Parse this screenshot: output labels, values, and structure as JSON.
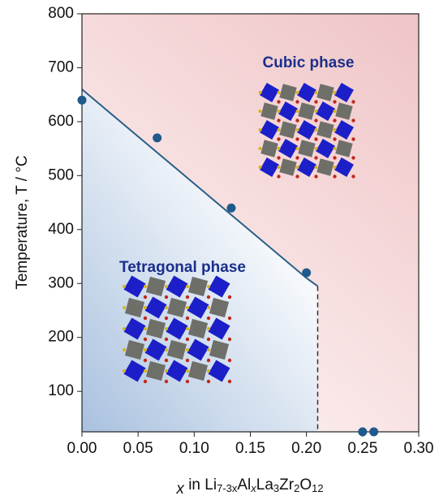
{
  "chart_data": {
    "type": "scatter",
    "x_label": [
      "x",
      " in Li",
      "7-3x",
      "Al",
      "x",
      "La",
      "3",
      "Zr",
      "2",
      "O",
      "12"
    ],
    "y_label": "Temperature, T / °C",
    "annotations": [
      "Cubic phase",
      "Tetragonal phase"
    ],
    "x": [
      0,
      0.067,
      0.133,
      0.2,
      0.25,
      0.26
    ],
    "values": [
      640,
      570,
      440,
      320,
      25,
      25
    ],
    "color": "#1f5a8c",
    "boundary": {
      "x": [
        0,
        0.2,
        0.21
      ],
      "y": [
        660,
        310,
        295
      ],
      "color": "#2a5f88"
    },
    "boundary_dashed": {
      "x": [
        0.21,
        0.21
      ],
      "y": [
        295,
        25
      ]
    },
    "xlim": [
      0,
      0.3
    ],
    "ylim": [
      25,
      800
    ],
    "xticks": [
      {
        "value": 0,
        "label": "0.00"
      },
      {
        "value": 0.05,
        "label": "0.05"
      },
      {
        "value": 0.1,
        "label": "0.10"
      },
      {
        "value": 0.15,
        "label": "0.15"
      },
      {
        "value": 0.2,
        "label": "0.20"
      },
      {
        "value": 0.25,
        "label": "0.25"
      },
      {
        "value": 0.3,
        "label": "0.30"
      }
    ],
    "yticks": [
      100,
      200,
      300,
      400,
      500,
      600,
      700,
      800
    ]
  }
}
